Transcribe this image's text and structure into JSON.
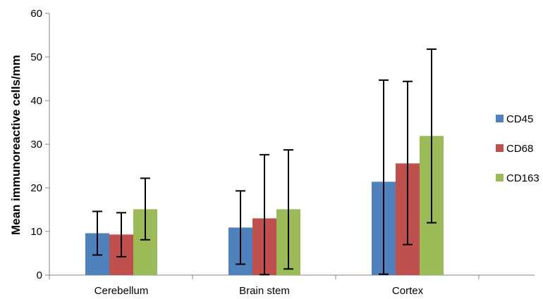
{
  "chart_data": {
    "type": "bar",
    "title": "",
    "xlabel": "",
    "ylabel": "Mean immunoreactive cells/mm",
    "ylim": [
      0,
      60
    ],
    "yticks": [
      0,
      10,
      20,
      30,
      40,
      50,
      60
    ],
    "grid": false,
    "legend_position": "right",
    "categories": [
      "Cerebellum",
      "Brain stem",
      "Cortex"
    ],
    "series": [
      {
        "name": "CD45",
        "color": "#4F81BD",
        "values": [
          9.6,
          10.9,
          21.4
        ],
        "err_low": [
          4.6,
          2.5,
          0.2
        ],
        "err_high": [
          14.6,
          19.3,
          44.7
        ]
      },
      {
        "name": "CD68",
        "color": "#C0504D",
        "values": [
          9.3,
          13.0,
          25.6
        ],
        "err_low": [
          4.2,
          0.1,
          7.0
        ],
        "err_high": [
          14.3,
          27.6,
          44.4
        ]
      },
      {
        "name": "CD163",
        "color": "#9BBB59",
        "values": [
          15.1,
          15.1,
          31.9
        ],
        "err_low": [
          8.1,
          1.4,
          12.0
        ],
        "err_high": [
          22.2,
          28.7,
          51.8
        ]
      }
    ]
  }
}
